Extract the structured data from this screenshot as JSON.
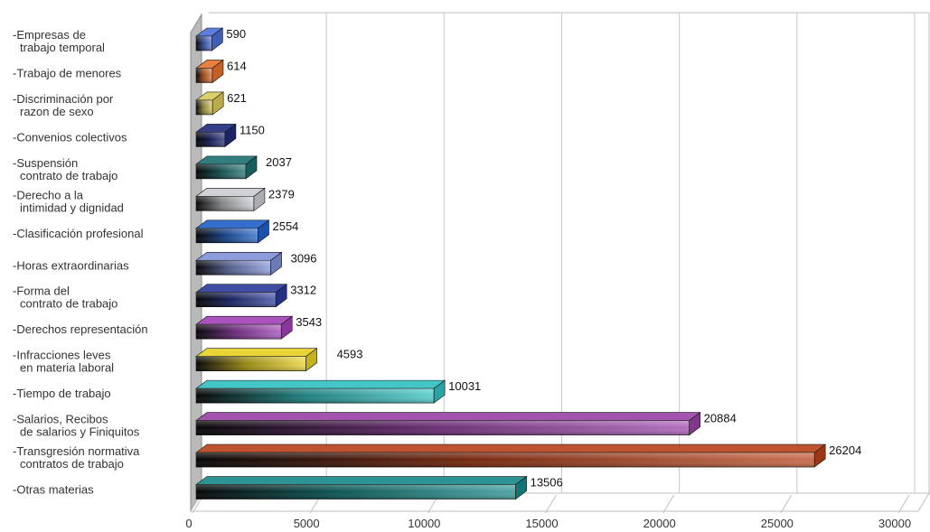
{
  "chart_data": {
    "type": "bar",
    "orientation": "horizontal",
    "categories": [
      [
        "Empresas de",
        "trabajo temporal"
      ],
      [
        "Trabajo de menores"
      ],
      [
        "Discriminación por",
        "razon de sexo"
      ],
      [
        "Convenios colectivos"
      ],
      [
        "Suspensión",
        "contrato de trabajo"
      ],
      [
        "Derecho a la",
        "intimidad y dignidad"
      ],
      [
        "Clasificación profesional"
      ],
      [
        "Horas extraordinarias"
      ],
      [
        "Forma del",
        "contrato de trabajo"
      ],
      [
        "Derechos representación"
      ],
      [
        "Infracciones leves",
        "en materia laboral"
      ],
      [
        "Tiempo de trabajo"
      ],
      [
        "Salarios, Recibos",
        "de salarios y Finiquitos"
      ],
      [
        "Transgresión normativa",
        "contratos de trabajo"
      ],
      [
        "Otras materias"
      ]
    ],
    "values": [
      590,
      614,
      621,
      1150,
      2037,
      2379,
      2554,
      3096,
      3312,
      3543,
      4593,
      10031,
      20884,
      26204,
      13506
    ],
    "value_labels": [
      "590",
      "614",
      "621",
      "1150",
      "2037",
      "2379",
      "2554",
      "3096",
      "3312",
      "3543",
      "4593",
      "10031",
      "20884",
      "26204",
      "13506"
    ],
    "colors": [
      "#4a6fd8",
      "#e8722a",
      "#d8c85a",
      "#1f2a78",
      "#1a6e6e",
      "#c8ccd0",
      "#1f5fc8",
      "#7f90d8",
      "#2a3a9a",
      "#a040b8",
      "#e8d020",
      "#30c0c0",
      "#9a40a8",
      "#b84018",
      "#158888"
    ],
    "x_ticks": [
      "0",
      "5000",
      "10000",
      "15000",
      "20000",
      "25000",
      "30000"
    ],
    "xlim": [
      0,
      30000
    ],
    "title": "",
    "xlabel": "",
    "ylabel": "",
    "grid": true,
    "legend": "none"
  }
}
